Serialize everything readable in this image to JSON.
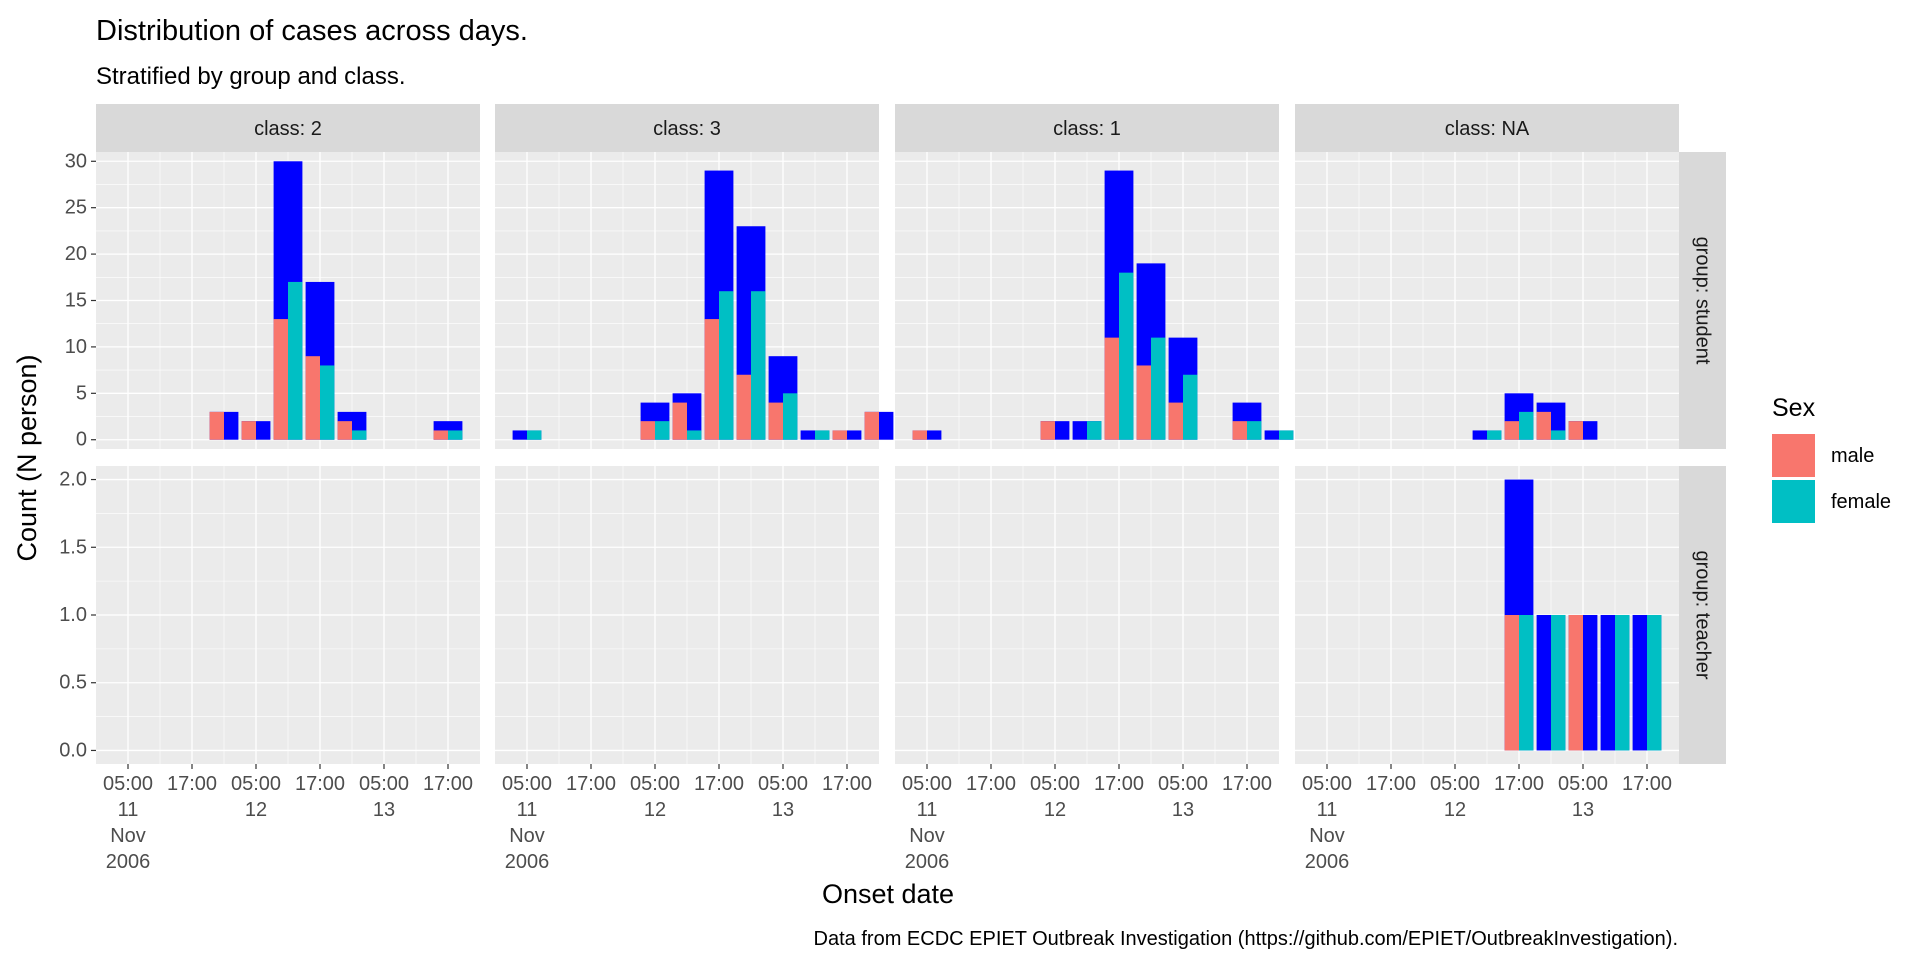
{
  "chart_data": {
    "type": "bar",
    "title": "Distribution of cases across days.",
    "subtitle": "Stratified by group and class.",
    "xlabel": "Onset date",
    "ylabel": "Count (N person)",
    "caption": "Data from ECDC EPIET Outbreak Investigation (https://github.com/EPIET/OutbreakInvestigation).",
    "legend": {
      "title": "Sex",
      "position": "right",
      "entries": [
        {
          "label": "male",
          "color": "#F8766D"
        },
        {
          "label": "female",
          "color": "#00BFC4"
        }
      ]
    },
    "total_bar_color": "#0000FF",
    "panel_bg": "#EBEBEB",
    "strip_bg": "#D9D9D9",
    "x_ticks": [
      {
        "lines": [
          "05:00",
          "11",
          "Nov",
          "2006"
        ]
      },
      {
        "lines": [
          "17:00"
        ]
      },
      {
        "lines": [
          "05:00",
          "12"
        ]
      },
      {
        "lines": [
          "17:00"
        ]
      },
      {
        "lines": [
          "05:00",
          "13"
        ]
      },
      {
        "lines": [
          "17:00"
        ]
      }
    ],
    "x_tick_index_values": [
      1,
      3,
      5,
      7,
      9,
      11
    ],
    "x_range": [
      0,
      12
    ],
    "columns": [
      "class: 2",
      "class: 3",
      "class: 1",
      "class: NA"
    ],
    "rows": [
      {
        "label": "group: student",
        "ylim": [
          -1,
          31
        ],
        "y_ticks": [
          "0",
          "5",
          "10",
          "15",
          "20",
          "25",
          "30"
        ],
        "y_tick_values": [
          0,
          5,
          10,
          15,
          20,
          25,
          30
        ]
      },
      {
        "label": "group: teacher",
        "ylim": [
          -0.1,
          2.1
        ],
        "y_ticks": [
          "0.0",
          "0.5",
          "1.0",
          "1.5",
          "2.0"
        ],
        "y_tick_values": [
          0,
          0.5,
          1,
          1.5,
          2
        ]
      }
    ],
    "bin_width_hours": 6,
    "bin_note": "bins indexed by 6-hour slot; tick index 1 = 05:00 11 Nov 2006",
    "panels": [
      {
        "row": 0,
        "col": 0,
        "bins": [
          {
            "i": 4,
            "total": 3,
            "male": 3,
            "female": 0
          },
          {
            "i": 5,
            "total": 2,
            "male": 2,
            "female": 0
          },
          {
            "i": 6,
            "total": 30,
            "male": 13,
            "female": 17
          },
          {
            "i": 7,
            "total": 17,
            "male": 9,
            "female": 8
          },
          {
            "i": 8,
            "total": 3,
            "male": 2,
            "female": 1
          },
          {
            "i": 11,
            "total": 2,
            "male": 1,
            "female": 1
          }
        ]
      },
      {
        "row": 0,
        "col": 1,
        "bins": [
          {
            "i": 1,
            "total": 1,
            "male": 0,
            "female": 1
          },
          {
            "i": 5,
            "total": 4,
            "male": 2,
            "female": 2
          },
          {
            "i": 6,
            "total": 5,
            "male": 4,
            "female": 1
          },
          {
            "i": 7,
            "total": 29,
            "male": 13,
            "female": 16
          },
          {
            "i": 8,
            "total": 23,
            "male": 7,
            "female": 16
          },
          {
            "i": 9,
            "total": 9,
            "male": 4,
            "female": 5
          },
          {
            "i": 10,
            "total": 1,
            "male": 0,
            "female": 1
          },
          {
            "i": 11,
            "total": 1,
            "male": 1,
            "female": 0
          },
          {
            "i": 12,
            "total": 3,
            "male": 3,
            "female": 0
          }
        ]
      },
      {
        "row": 0,
        "col": 2,
        "bins": [
          {
            "i": 1,
            "total": 1,
            "male": 1,
            "female": 0
          },
          {
            "i": 5,
            "total": 2,
            "male": 2,
            "female": 0
          },
          {
            "i": 6,
            "total": 2,
            "male": 0,
            "female": 2
          },
          {
            "i": 7,
            "total": 29,
            "male": 11,
            "female": 18
          },
          {
            "i": 8,
            "total": 19,
            "male": 8,
            "female": 11
          },
          {
            "i": 9,
            "total": 11,
            "male": 4,
            "female": 7
          },
          {
            "i": 11,
            "total": 4,
            "male": 2,
            "female": 2
          },
          {
            "i": 12,
            "total": 1,
            "male": 0,
            "female": 1
          }
        ]
      },
      {
        "row": 0,
        "col": 3,
        "bins": [
          {
            "i": 6,
            "total": 1,
            "male": 0,
            "female": 1
          },
          {
            "i": 7,
            "total": 5,
            "male": 2,
            "female": 3
          },
          {
            "i": 8,
            "total": 4,
            "male": 3,
            "female": 1
          },
          {
            "i": 9,
            "total": 2,
            "male": 2,
            "female": 0
          }
        ]
      },
      {
        "row": 1,
        "col": 0,
        "bins": []
      },
      {
        "row": 1,
        "col": 1,
        "bins": []
      },
      {
        "row": 1,
        "col": 2,
        "bins": []
      },
      {
        "row": 1,
        "col": 3,
        "bins": [
          {
            "i": 7,
            "total": 2,
            "male": 1,
            "female": 1
          },
          {
            "i": 8,
            "total": 1,
            "male": 0,
            "female": 1
          },
          {
            "i": 9,
            "total": 1,
            "male": 1,
            "female": 0
          },
          {
            "i": 10,
            "total": 1,
            "male": 0,
            "female": 1
          },
          {
            "i": 11,
            "total": 1,
            "male": 0,
            "female": 1
          }
        ]
      }
    ]
  }
}
